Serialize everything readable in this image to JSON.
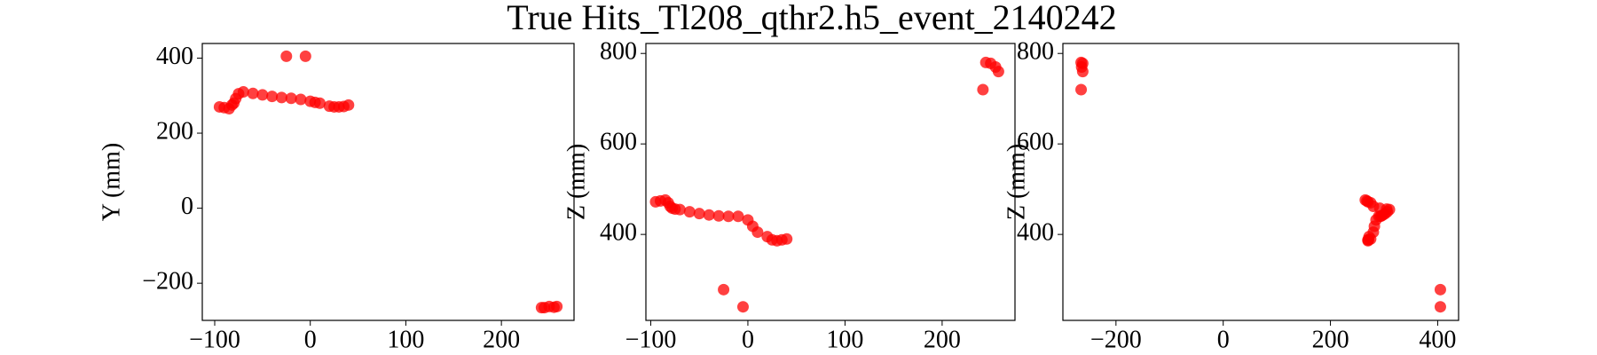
{
  "title": "True Hits_Tl208_qthr2.h5_event_2140242",
  "chart_data": [
    {
      "type": "scatter",
      "ylabel": "Y (mm)",
      "color": "#ff0000",
      "x": [
        -95,
        -90,
        -85,
        -82,
        -80,
        -78,
        -75,
        -70,
        -60,
        -50,
        -40,
        -30,
        -20,
        -10,
        0,
        5,
        10,
        20,
        25,
        30,
        35,
        40,
        -25,
        -5,
        242,
        245,
        250,
        255,
        258
      ],
      "values": [
        270,
        268,
        265,
        275,
        280,
        292,
        305,
        310,
        306,
        302,
        298,
        295,
        293,
        290,
        285,
        282,
        280,
        272,
        270,
        270,
        271,
        275,
        405,
        405,
        -265,
        -265,
        -262,
        -264,
        -262
      ],
      "xlim": [
        -113,
        276
      ],
      "ylim": [
        -299,
        439
      ],
      "xticks": [
        {
          "value": -100,
          "label": "−100"
        },
        0,
        100,
        200
      ],
      "yticks": [
        {
          "value": -200,
          "label": "−200"
        },
        0,
        200,
        400
      ]
    },
    {
      "type": "scatter",
      "ylabel": "Z (mm)",
      "color": "#ff0000",
      "x": [
        -95,
        -90,
        -85,
        -82,
        -80,
        -78,
        -75,
        -70,
        -60,
        -50,
        -40,
        -30,
        -20,
        -10,
        0,
        5,
        10,
        20,
        25,
        30,
        35,
        40,
        -25,
        -5,
        242,
        245,
        250,
        255,
        258
      ],
      "values": [
        472,
        474,
        476,
        470,
        462,
        458,
        456,
        455,
        450,
        446,
        443,
        441,
        440,
        440,
        432,
        418,
        405,
        395,
        388,
        386,
        388,
        390,
        278,
        240,
        720,
        780,
        778,
        770,
        760
      ],
      "xlim": [
        -105,
        275
      ],
      "ylim": [
        210,
        822
      ],
      "xticks": [
        {
          "value": -100,
          "label": "−100"
        },
        0,
        100,
        200
      ],
      "yticks": [
        400,
        600,
        800
      ]
    },
    {
      "type": "scatter",
      "ylabel": "Z (mm)",
      "color": "#ff0000",
      "x": [
        270,
        268,
        265,
        275,
        280,
        292,
        305,
        310,
        306,
        302,
        298,
        295,
        293,
        290,
        285,
        282,
        280,
        272,
        270,
        270,
        271,
        275,
        405,
        405,
        -265,
        -265,
        -262,
        -264,
        -262
      ],
      "values": [
        472,
        474,
        476,
        470,
        462,
        458,
        456,
        455,
        450,
        446,
        443,
        441,
        440,
        440,
        432,
        418,
        405,
        395,
        388,
        386,
        388,
        390,
        278,
        240,
        720,
        780,
        778,
        770,
        760
      ],
      "xlim": [
        -299,
        439
      ],
      "ylim": [
        210,
        822
      ],
      "xticks": [
        {
          "value": -200,
          "label": "−200"
        },
        0,
        200,
        400
      ],
      "yticks": [
        400,
        600,
        800
      ]
    }
  ]
}
